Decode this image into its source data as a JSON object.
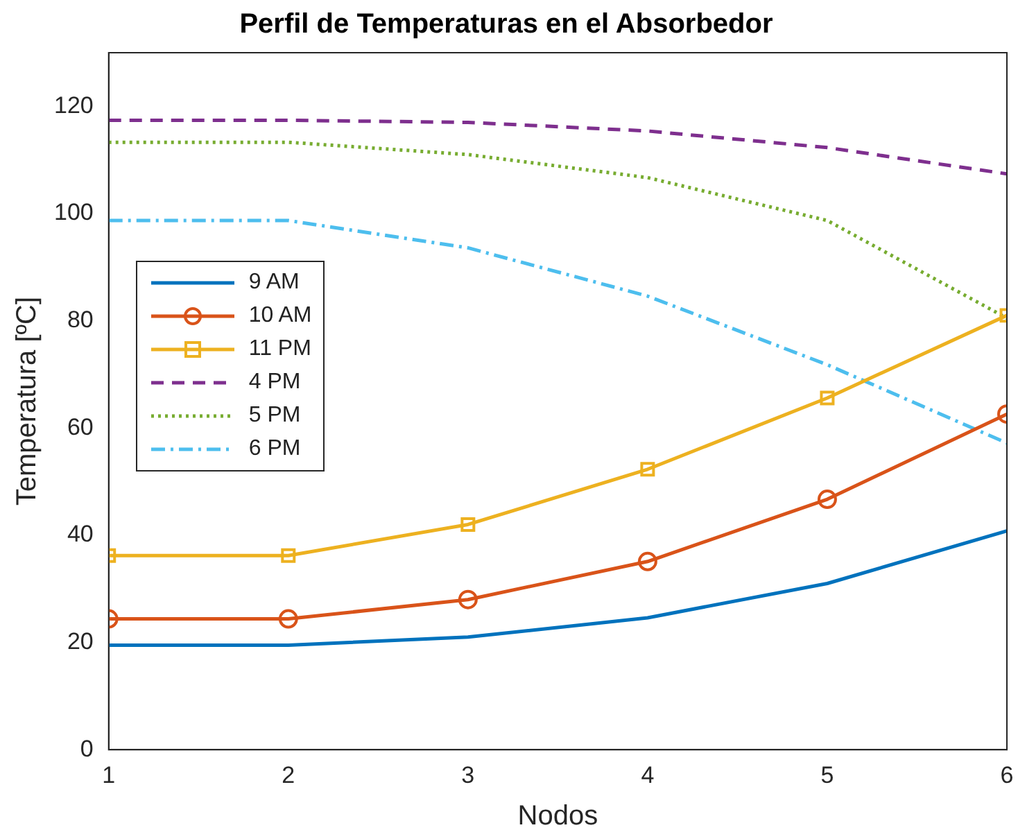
{
  "chart_data": {
    "type": "line",
    "title": "Perfil de Temperaturas en el Absorbedor",
    "xlabel": "Nodos",
    "ylabel": "Temperatura [ºC]",
    "x": [
      1,
      2,
      3,
      4,
      5,
      6
    ],
    "xlim": [
      1,
      6
    ],
    "xticks": [
      1,
      2,
      3,
      4,
      5,
      6
    ],
    "ylim": [
      0,
      130
    ],
    "yticks": [
      0,
      20,
      40,
      60,
      80,
      100,
      120
    ],
    "grid": false,
    "legend": "left",
    "series": [
      {
        "name": "9 AM",
        "color": "#0072bd",
        "marker": "none",
        "line_style": "solid",
        "values": [
          19.5,
          19.5,
          21,
          24.6,
          31,
          40.8
        ]
      },
      {
        "name": "10 AM",
        "color": "#d95319",
        "marker": "circle",
        "line_style": "solid",
        "values": [
          24.4,
          24.4,
          28,
          35.1,
          46.7,
          62.6
        ]
      },
      {
        "name": "11 PM",
        "color": "#edb120",
        "marker": "square",
        "line_style": "solid",
        "values": [
          36.2,
          36.2,
          42,
          52.3,
          65.6,
          81
        ]
      },
      {
        "name": "4 PM",
        "color": "#7e2f8e",
        "marker": "none",
        "line_style": "dashed",
        "values": [
          117.4,
          117.4,
          117,
          115.4,
          112.3,
          107.4
        ]
      },
      {
        "name": "5 PM",
        "color": "#77ac30",
        "marker": "none",
        "line_style": "dotted",
        "values": [
          113.3,
          113.3,
          111,
          106.7,
          98.7,
          80.5
        ]
      },
      {
        "name": "6 PM",
        "color": "#4dbeee",
        "marker": "none",
        "line_style": "dashdot",
        "values": [
          98.7,
          98.7,
          93.6,
          84.6,
          71.8,
          57.2
        ]
      }
    ]
  }
}
